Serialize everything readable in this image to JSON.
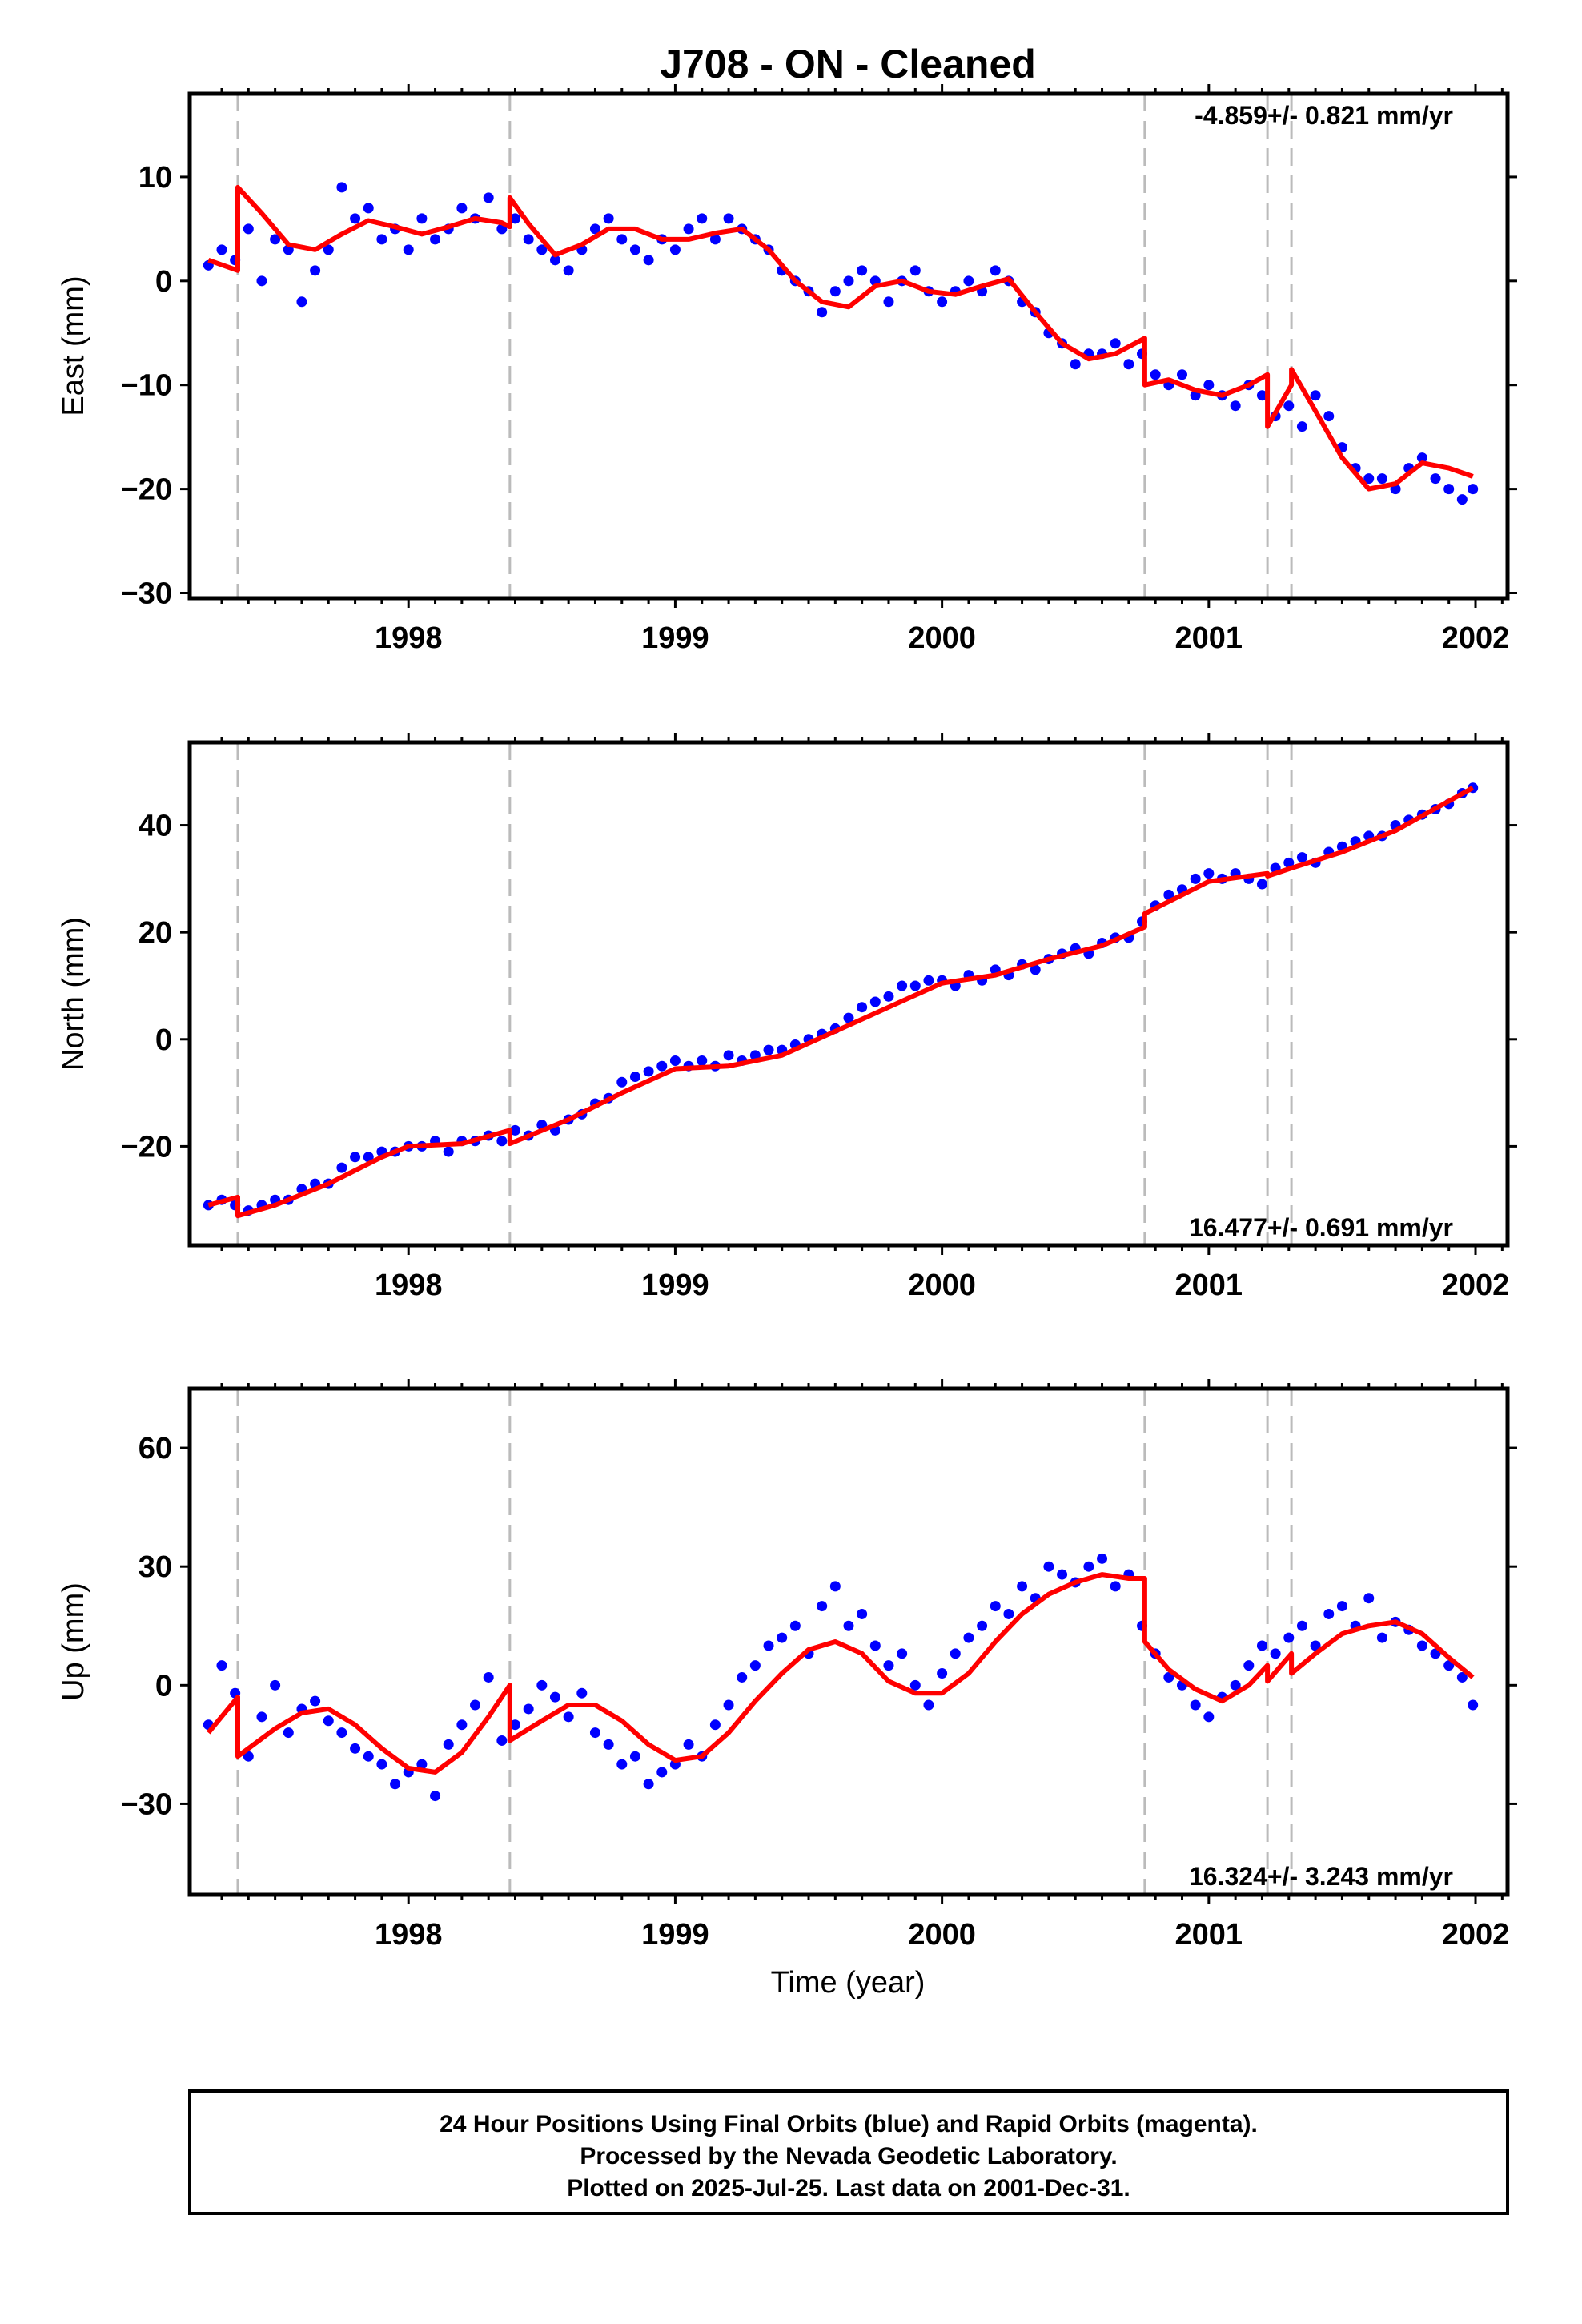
{
  "title": "J708  - ON - Cleaned",
  "xlabel": "Time (year)",
  "footer": {
    "line1": "24 Hour Positions Using Final Orbits (blue) and Rapid Orbits (magenta).",
    "line2": "Processed by the Nevada Geodetic Laboratory.",
    "line3": "Plotted on 2025-Jul-25. Last data on 2001-Dec-31."
  },
  "colors": {
    "points": "#0000ff",
    "model": "#ff0000",
    "steps": "#bbbbbb"
  },
  "chart_data": [
    {
      "type": "scatter",
      "ylabel": "East (mm)",
      "rate_label": "-4.859+/- 0.821 mm/yr",
      "xlim": [
        1997.18,
        2002.12
      ],
      "ylim": [
        -30.5,
        18
      ],
      "x_ticks": [
        1998,
        1999,
        2000,
        2001,
        2002
      ],
      "y_ticks": [
        -30,
        -20,
        -10,
        0,
        10
      ],
      "step_lines": [
        1997.36,
        1998.38,
        2000.76,
        2001.22,
        2001.31
      ],
      "model": {
        "x": [
          1997.25,
          1997.36,
          1997.36,
          1997.45,
          1997.55,
          1997.65,
          1997.75,
          1997.85,
          1997.95,
          1998.05,
          1998.15,
          1998.25,
          1998.35,
          1998.38,
          1998.38,
          1998.45,
          1998.55,
          1998.65,
          1998.75,
          1998.85,
          1998.95,
          1999.05,
          1999.15,
          1999.25,
          1999.35,
          1999.45,
          1999.55,
          1999.65,
          1999.75,
          1999.85,
          1999.95,
          2000.05,
          2000.15,
          2000.25,
          2000.35,
          2000.45,
          2000.55,
          2000.65,
          2000.76,
          2000.76,
          2000.85,
          2000.95,
          2001.05,
          2001.15,
          2001.22,
          2001.22,
          2001.31,
          2001.31,
          2001.4,
          2001.5,
          2001.6,
          2001.7,
          2001.8,
          2001.9,
          2001.99
        ],
        "y": [
          2,
          1,
          9,
          6.5,
          3.5,
          3,
          4.5,
          5.8,
          5.2,
          4.5,
          5.2,
          6,
          5.6,
          5.2,
          8,
          5.5,
          2.5,
          3.5,
          5,
          5,
          4,
          4,
          4.6,
          5,
          3,
          0,
          -2,
          -2.5,
          -0.5,
          0,
          -1,
          -1.3,
          -0.5,
          0.2,
          -3,
          -6,
          -7.5,
          -7,
          -5.5,
          -10,
          -9.5,
          -10.5,
          -11,
          -10,
          -9,
          -14,
          -10,
          -8.5,
          -12.5,
          -17,
          -20,
          -19.5,
          -17.5,
          -18,
          -18.8
        ]
      },
      "points": {
        "x": [
          1997.25,
          1997.3,
          1997.35,
          1997.4,
          1997.45,
          1997.5,
          1997.55,
          1997.6,
          1997.65,
          1997.7,
          1997.75,
          1997.8,
          1997.85,
          1997.9,
          1997.95,
          1998,
          1998.05,
          1998.1,
          1998.15,
          1998.2,
          1998.25,
          1998.3,
          1998.35,
          1998.4,
          1998.45,
          1998.5,
          1998.55,
          1998.6,
          1998.65,
          1998.7,
          1998.75,
          1998.8,
          1998.85,
          1998.9,
          1998.95,
          1999,
          1999.05,
          1999.1,
          1999.15,
          1999.2,
          1999.25,
          1999.3,
          1999.35,
          1999.4,
          1999.45,
          1999.5,
          1999.55,
          1999.6,
          1999.65,
          1999.7,
          1999.75,
          1999.8,
          1999.85,
          1999.9,
          1999.95,
          2000,
          2000.05,
          2000.1,
          2000.15,
          2000.2,
          2000.25,
          2000.3,
          2000.35,
          2000.4,
          2000.45,
          2000.5,
          2000.55,
          2000.6,
          2000.65,
          2000.7,
          2000.75,
          2000.8,
          2000.85,
          2000.9,
          2000.95,
          2001,
          2001.05,
          2001.1,
          2001.15,
          2001.2,
          2001.25,
          2001.3,
          2001.35,
          2001.4,
          2001.45,
          2001.5,
          2001.55,
          2001.6,
          2001.65,
          2001.7,
          2001.75,
          2001.8,
          2001.85,
          2001.9,
          2001.95,
          2001.99
        ],
        "y": [
          1.5,
          3,
          2,
          5,
          0,
          4,
          3,
          -2,
          1,
          3,
          9,
          6,
          7,
          4,
          5,
          3,
          6,
          4,
          5,
          7,
          6,
          8,
          5,
          6,
          4,
          3,
          2,
          1,
          3,
          5,
          6,
          4,
          3,
          2,
          4,
          3,
          5,
          6,
          4,
          6,
          5,
          4,
          3,
          1,
          0,
          -1,
          -3,
          -1,
          0,
          1,
          0,
          -2,
          0,
          1,
          -1,
          -2,
          -1,
          0,
          -1,
          1,
          0,
          -2,
          -3,
          -5,
          -6,
          -8,
          -7,
          -7,
          -6,
          -8,
          -7,
          -9,
          -10,
          -9,
          -11,
          -10,
          -11,
          -12,
          -10,
          -11,
          -13,
          -12,
          -14,
          -11,
          -13,
          -16,
          -18,
          -19,
          -19,
          -20,
          -18,
          -17,
          -19,
          -20,
          -21,
          -20
        ]
      }
    },
    {
      "type": "scatter",
      "ylabel": "North (mm)",
      "rate_label": "16.477+/- 0.691 mm/yr",
      "xlim": [
        1997.18,
        2002.12
      ],
      "ylim": [
        -38.5,
        55.5
      ],
      "x_ticks": [
        1998,
        1999,
        2000,
        2001,
        2002
      ],
      "y_ticks": [
        -20,
        0,
        20,
        40
      ],
      "step_lines": [
        1997.36,
        1998.38,
        2000.76,
        2001.22,
        2001.31
      ],
      "model": {
        "x": [
          1997.25,
          1997.36,
          1997.36,
          1997.5,
          1997.7,
          1997.9,
          1998.0,
          1998.2,
          1998.38,
          1998.38,
          1998.6,
          1998.8,
          1999.0,
          1999.2,
          1999.4,
          1999.6,
          1999.8,
          2000.0,
          2000.2,
          2000.4,
          2000.6,
          2000.76,
          2000.76,
          2000.9,
          2001.0,
          2001.22,
          2001.22,
          2001.31,
          2001.31,
          2001.5,
          2001.7,
          2001.99
        ],
        "y": [
          -31,
          -29.5,
          -33,
          -31,
          -27,
          -22,
          -20,
          -19.5,
          -17,
          -19.5,
          -15,
          -10,
          -5.5,
          -5,
          -3,
          1.5,
          6,
          10.5,
          12,
          15,
          17.5,
          21,
          23.5,
          27,
          29.5,
          31,
          30.5,
          32,
          32,
          35,
          39,
          47
        ]
      },
      "points": {
        "x": [
          1997.25,
          1997.3,
          1997.35,
          1997.4,
          1997.45,
          1997.5,
          1997.55,
          1997.6,
          1997.65,
          1997.7,
          1997.75,
          1997.8,
          1997.85,
          1997.9,
          1997.95,
          1998,
          1998.05,
          1998.1,
          1998.15,
          1998.2,
          1998.25,
          1998.3,
          1998.35,
          1998.4,
          1998.45,
          1998.5,
          1998.55,
          1998.6,
          1998.65,
          1998.7,
          1998.75,
          1998.8,
          1998.85,
          1998.9,
          1998.95,
          1999,
          1999.05,
          1999.1,
          1999.15,
          1999.2,
          1999.25,
          1999.3,
          1999.35,
          1999.4,
          1999.45,
          1999.5,
          1999.55,
          1999.6,
          1999.65,
          1999.7,
          1999.75,
          1999.8,
          1999.85,
          1999.9,
          1999.95,
          2000,
          2000.05,
          2000.1,
          2000.15,
          2000.2,
          2000.25,
          2000.3,
          2000.35,
          2000.4,
          2000.45,
          2000.5,
          2000.55,
          2000.6,
          2000.65,
          2000.7,
          2000.75,
          2000.8,
          2000.85,
          2000.9,
          2000.95,
          2001,
          2001.05,
          2001.1,
          2001.15,
          2001.2,
          2001.25,
          2001.3,
          2001.35,
          2001.4,
          2001.45,
          2001.5,
          2001.55,
          2001.6,
          2001.65,
          2001.7,
          2001.75,
          2001.8,
          2001.85,
          2001.9,
          2001.95,
          2001.99
        ],
        "y": [
          -31,
          -30,
          -31,
          -32,
          -31,
          -30,
          -30,
          -28,
          -27,
          -27,
          -24,
          -22,
          -22,
          -21,
          -21,
          -20,
          -20,
          -19,
          -21,
          -19,
          -19,
          -18,
          -19,
          -17,
          -18,
          -16,
          -17,
          -15,
          -14,
          -12,
          -11,
          -8,
          -7,
          -6,
          -5,
          -4,
          -5,
          -4,
          -5,
          -3,
          -4,
          -3,
          -2,
          -2,
          -1,
          0,
          1,
          2,
          4,
          6,
          7,
          8,
          10,
          10,
          11,
          11,
          10,
          12,
          11,
          13,
          12,
          14,
          13,
          15,
          16,
          17,
          16,
          18,
          19,
          19,
          22,
          25,
          27,
          28,
          30,
          31,
          30,
          31,
          30,
          29,
          32,
          33,
          34,
          33,
          35,
          36,
          37,
          38,
          38,
          40,
          41,
          42,
          43,
          44,
          46,
          47
        ]
      }
    },
    {
      "type": "scatter",
      "ylabel": "Up (mm)",
      "rate_label": "16.324+/- 3.243 mm/yr",
      "xlim": [
        1997.18,
        2002.12
      ],
      "ylim": [
        -53,
        75
      ],
      "x_ticks": [
        1998,
        1999,
        2000,
        2001,
        2002
      ],
      "y_ticks": [
        -30,
        0,
        30,
        60
      ],
      "step_lines": [
        1997.36,
        1998.38,
        2000.76,
        2001.22,
        2001.31
      ],
      "model": {
        "x": [
          1997.25,
          1997.36,
          1997.36,
          1997.5,
          1997.6,
          1997.7,
          1997.8,
          1997.9,
          1998.0,
          1998.1,
          1998.2,
          1998.3,
          1998.38,
          1998.38,
          1998.5,
          1998.6,
          1998.7,
          1998.8,
          1998.9,
          1999.0,
          1999.1,
          1999.2,
          1999.3,
          1999.4,
          1999.5,
          1999.6,
          1999.7,
          1999.8,
          1999.9,
          2000.0,
          2000.1,
          2000.2,
          2000.3,
          2000.4,
          2000.5,
          2000.6,
          2000.7,
          2000.76,
          2000.76,
          2000.85,
          2000.95,
          2001.05,
          2001.15,
          2001.22,
          2001.22,
          2001.31,
          2001.31,
          2001.4,
          2001.5,
          2001.6,
          2001.7,
          2001.8,
          2001.9,
          2001.99
        ],
        "y": [
          -12,
          -3,
          -18,
          -11,
          -7,
          -6,
          -10,
          -16,
          -21,
          -22,
          -17,
          -8,
          0,
          -14,
          -9,
          -5,
          -5,
          -9,
          -15,
          -19,
          -18,
          -12,
          -4,
          3,
          9,
          11,
          8,
          1,
          -2,
          -2,
          3,
          11,
          18,
          23,
          26,
          28,
          27,
          27,
          11,
          4,
          -1,
          -4,
          0,
          5,
          1,
          8,
          3,
          8,
          13,
          15,
          16,
          13,
          7,
          2
        ]
      },
      "points": {
        "x": [
          1997.25,
          1997.3,
          1997.35,
          1997.4,
          1997.45,
          1997.5,
          1997.55,
          1997.6,
          1997.65,
          1997.7,
          1997.75,
          1997.8,
          1997.85,
          1997.9,
          1997.95,
          1998,
          1998.05,
          1998.1,
          1998.15,
          1998.2,
          1998.25,
          1998.3,
          1998.35,
          1998.4,
          1998.45,
          1998.5,
          1998.55,
          1998.6,
          1998.65,
          1998.7,
          1998.75,
          1998.8,
          1998.85,
          1998.9,
          1998.95,
          1999,
          1999.05,
          1999.1,
          1999.15,
          1999.2,
          1999.25,
          1999.3,
          1999.35,
          1999.4,
          1999.45,
          1999.5,
          1999.55,
          1999.6,
          1999.65,
          1999.7,
          1999.75,
          1999.8,
          1999.85,
          1999.9,
          1999.95,
          2000,
          2000.05,
          2000.1,
          2000.15,
          2000.2,
          2000.25,
          2000.3,
          2000.35,
          2000.4,
          2000.45,
          2000.5,
          2000.55,
          2000.6,
          2000.65,
          2000.7,
          2000.75,
          2000.8,
          2000.85,
          2000.9,
          2000.95,
          2001,
          2001.05,
          2001.1,
          2001.15,
          2001.2,
          2001.25,
          2001.3,
          2001.35,
          2001.4,
          2001.45,
          2001.5,
          2001.55,
          2001.6,
          2001.65,
          2001.7,
          2001.75,
          2001.8,
          2001.85,
          2001.9,
          2001.95,
          2001.99
        ],
        "y": [
          -10,
          5,
          -2,
          -18,
          -8,
          0,
          -12,
          -6,
          -4,
          -9,
          -12,
          -16,
          -18,
          -20,
          -25,
          -22,
          -20,
          -28,
          -15,
          -10,
          -5,
          2,
          -14,
          -10,
          -6,
          0,
          -3,
          -8,
          -2,
          -12,
          -15,
          -20,
          -18,
          -25,
          -22,
          -20,
          -15,
          -18,
          -10,
          -5,
          2,
          5,
          10,
          12,
          15,
          8,
          20,
          25,
          15,
          18,
          10,
          5,
          8,
          0,
          -5,
          3,
          8,
          12,
          15,
          20,
          18,
          25,
          22,
          30,
          28,
          26,
          30,
          32,
          25,
          28,
          15,
          8,
          2,
          0,
          -5,
          -8,
          -3,
          0,
          5,
          10,
          8,
          12,
          15,
          10,
          18,
          20,
          15,
          22,
          12,
          16,
          14,
          10,
          8,
          5,
          2,
          -5
        ]
      }
    }
  ]
}
